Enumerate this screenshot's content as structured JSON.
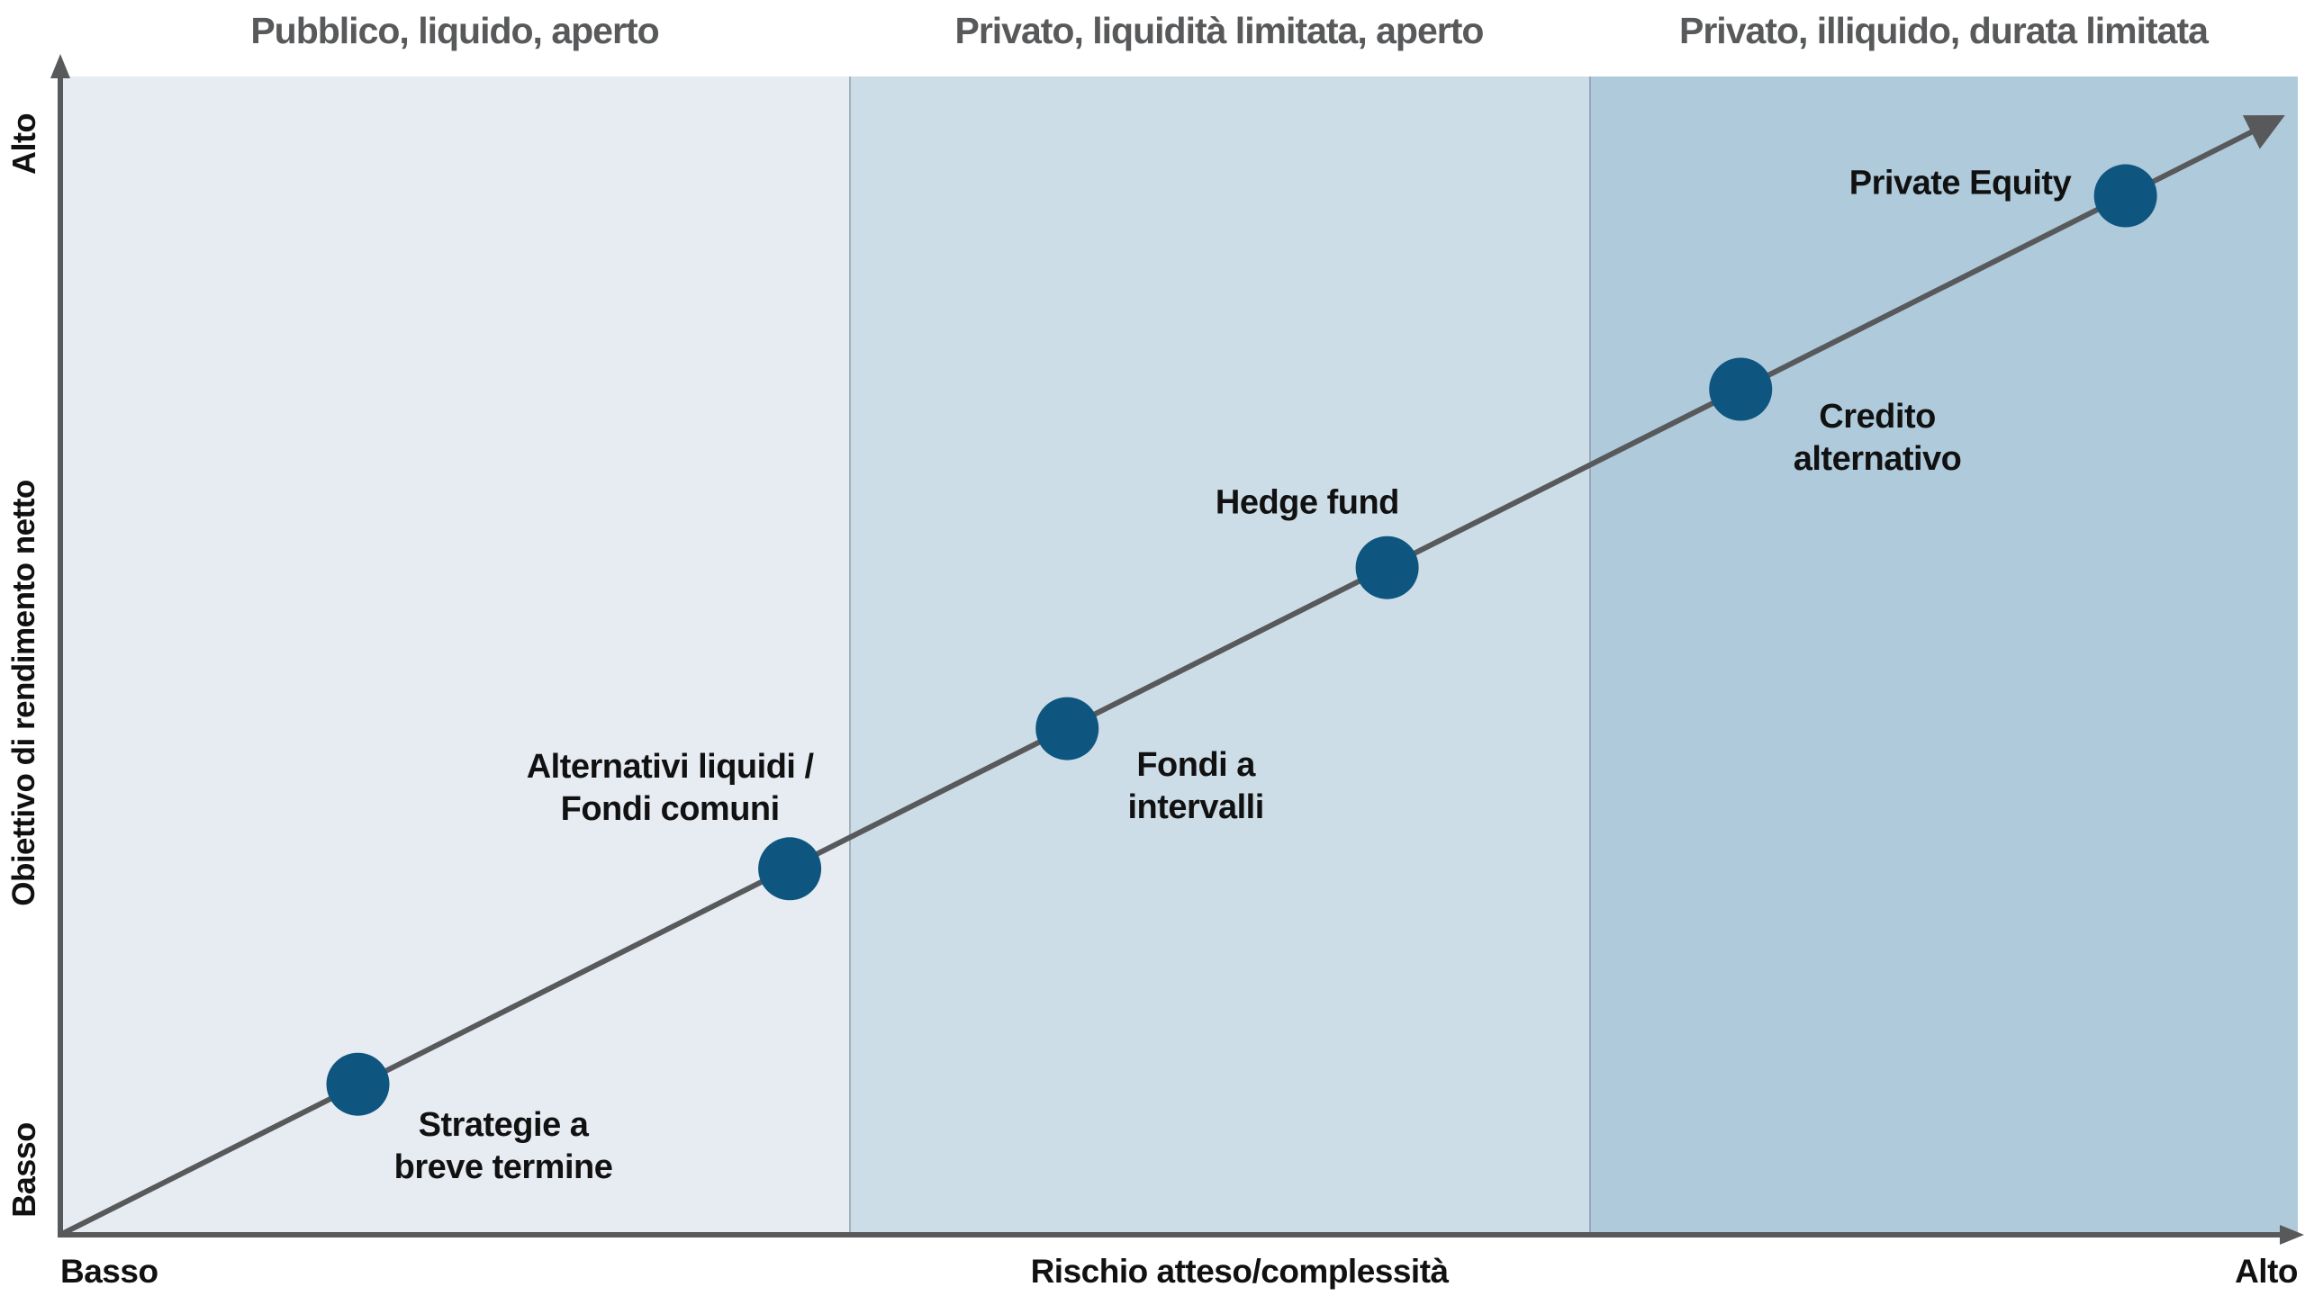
{
  "figure": {
    "y_axis": {
      "label": "Obiettivo di rendimento netto",
      "top_tick": "Alto",
      "bottom_tick": "Basso"
    },
    "x_axis": {
      "label": "Rischio atteso/complessità",
      "left_tick": "Basso",
      "right_tick": "Alto"
    }
  },
  "chart_data": {
    "type": "scatter",
    "title": "",
    "xlabel": "Rischio atteso/complessità",
    "ylabel": "Obiettivo di rendimento netto",
    "x_range_labels": [
      "Basso",
      "Alto"
    ],
    "y_range_labels": [
      "Basso",
      "Alto"
    ],
    "grid": false,
    "legend": "none",
    "bands": [
      {
        "id": "pubblico-liquido-aperto",
        "label": "Pubblico, liquido, aperto",
        "color": "#E7ECF3",
        "width_frac": 0.3525
      },
      {
        "id": "privato-liquidita-limitata-aperto",
        "label": "Privato, liquidità limitata, aperto",
        "color": "#CDDDE7",
        "width_frac": 0.3308
      },
      {
        "id": "privato-illiquido-durata-limitata",
        "label": "Privato, illiquido, durata limitata",
        "color": "#AFCADB",
        "width_frac": 0.3167
      }
    ],
    "trend_line": {
      "x1": 0.001,
      "y1": 0.001,
      "x2": 0.9875,
      "y2": 0.96
    },
    "points": [
      {
        "id": "strategie-a-breve-termine",
        "label_lines": [
          "Strategie a",
          "breve termine"
        ],
        "risk": 0.133,
        "return": 0.13,
        "label_pos": {
          "x": 0.198,
          "y": 0.924
        }
      },
      {
        "id": "alternativi-liquidi-fondi-comuni",
        "label_lines": [
          "Alternativi liquidi /",
          "Fondi comuni"
        ],
        "risk": 0.326,
        "return": 0.316,
        "label_pos": {
          "x": 0.2725,
          "y": 0.6146
        }
      },
      {
        "id": "fondi-a-intervalli",
        "label_lines": [
          "Fondi a",
          "intervalli"
        ],
        "risk": 0.45,
        "return": 0.437,
        "label_pos": {
          "x": 0.5075,
          "y": 0.6131
        }
      },
      {
        "id": "hedge-fund",
        "label_lines": [
          "Hedge fund"
        ],
        "risk": 0.593,
        "return": 0.576,
        "label_pos": {
          "x": 0.5573,
          "y": 0.3683
        }
      },
      {
        "id": "credito-alternativo",
        "label_lines": [
          "Credito",
          "alternativo"
        ],
        "risk": 0.751,
        "return": 0.73,
        "label_pos": {
          "x": 0.8121,
          "y": 0.3124
        }
      },
      {
        "id": "private-equity",
        "label_lines": [
          "Private Equity"
        ],
        "risk": 0.923,
        "return": 0.897,
        "label_pos": {
          "x": 0.8491,
          "y": 0.0925
        }
      }
    ],
    "point_radius_px": 35,
    "colors": {
      "point": "#0E5680",
      "line": "#58595B",
      "band_divider": "#828C96",
      "header_text": "#58595B",
      "label_text": "#111111",
      "background": "#FFFFFF"
    }
  }
}
